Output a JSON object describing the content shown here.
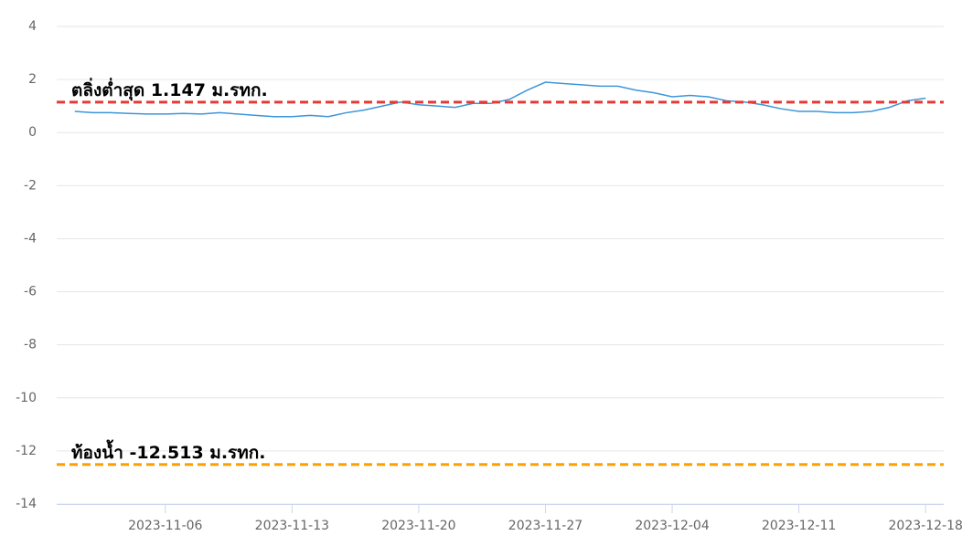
{
  "chart_data": {
    "type": "line",
    "x": [
      "2023-11-01",
      "2023-11-02",
      "2023-11-03",
      "2023-11-04",
      "2023-11-05",
      "2023-11-06",
      "2023-11-07",
      "2023-11-08",
      "2023-11-09",
      "2023-11-10",
      "2023-11-11",
      "2023-11-12",
      "2023-11-13",
      "2023-11-14",
      "2023-11-15",
      "2023-11-16",
      "2023-11-17",
      "2023-11-18",
      "2023-11-19",
      "2023-11-20",
      "2023-11-21",
      "2023-11-22",
      "2023-11-23",
      "2023-11-24",
      "2023-11-25",
      "2023-11-26",
      "2023-11-27",
      "2023-11-28",
      "2023-11-29",
      "2023-11-30",
      "2023-12-01",
      "2023-12-02",
      "2023-12-03",
      "2023-12-04",
      "2023-12-05",
      "2023-12-06",
      "2023-12-07",
      "2023-12-08",
      "2023-12-09",
      "2023-12-10",
      "2023-12-11",
      "2023-12-12",
      "2023-12-13",
      "2023-12-14",
      "2023-12-15",
      "2023-12-16",
      "2023-12-17",
      "2023-12-18"
    ],
    "values": [
      0.8,
      0.75,
      0.75,
      0.72,
      0.7,
      0.7,
      0.72,
      0.7,
      0.75,
      0.7,
      0.65,
      0.6,
      0.6,
      0.65,
      0.6,
      0.75,
      0.85,
      1.0,
      1.15,
      1.05,
      1.0,
      0.95,
      1.1,
      1.1,
      1.25,
      1.6,
      1.9,
      1.85,
      1.8,
      1.75,
      1.75,
      1.6,
      1.5,
      1.35,
      1.4,
      1.35,
      1.2,
      1.15,
      1.05,
      0.9,
      0.8,
      0.8,
      0.75,
      0.75,
      0.8,
      0.95,
      1.2,
      1.3
    ],
    "color": "#3d96d9",
    "xlim": [
      "2023-10-31",
      "2023-12-19"
    ],
    "xticks": [
      "2023-11-06",
      "2023-11-13",
      "2023-11-20",
      "2023-11-27",
      "2023-12-04",
      "2023-12-11",
      "2023-12-18"
    ],
    "ylim": [
      -14,
      4
    ],
    "yticks": [
      -14,
      -12,
      -10,
      -8,
      -6,
      -4,
      -2,
      0,
      2,
      4
    ],
    "grid": true,
    "reference_lines": [
      {
        "value": 1.147,
        "label": "ตลิ่งต่ำสุด 1.147 ม.รทก.",
        "color": "#e53935"
      },
      {
        "value": -12.513,
        "label": "ท้องน้ำ -12.513 ม.รทก.",
        "color": "#ffa000"
      }
    ]
  }
}
